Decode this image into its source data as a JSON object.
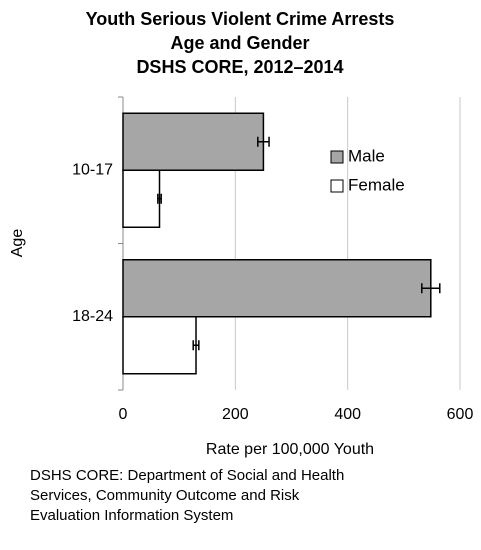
{
  "chart_data": {
    "type": "bar",
    "orientation": "horizontal",
    "title": [
      "Youth Serious Violent Crime Arrests",
      "Age and Gender",
      "DSHS CORE, 2012–2014"
    ],
    "categories": [
      "10-17",
      "18-24"
    ],
    "series": [
      {
        "name": "Male",
        "color": "#a6a6a6",
        "values": [
          250,
          548
        ],
        "errors": [
          10,
          16
        ]
      },
      {
        "name": "Female",
        "color": "#ffffff",
        "values": [
          65,
          130
        ],
        "errors": [
          3,
          5
        ]
      }
    ],
    "xlim": [
      0,
      600
    ],
    "xticks": [
      0,
      200,
      400,
      600
    ],
    "grid": true,
    "xlabel": "Rate per 100,000 Youth",
    "ylabel": "Age",
    "legend": "upper right",
    "footnote": "DSHS CORE: Department of Social and Health Services, Community Outcome and Risk Evaluation Information System"
  }
}
